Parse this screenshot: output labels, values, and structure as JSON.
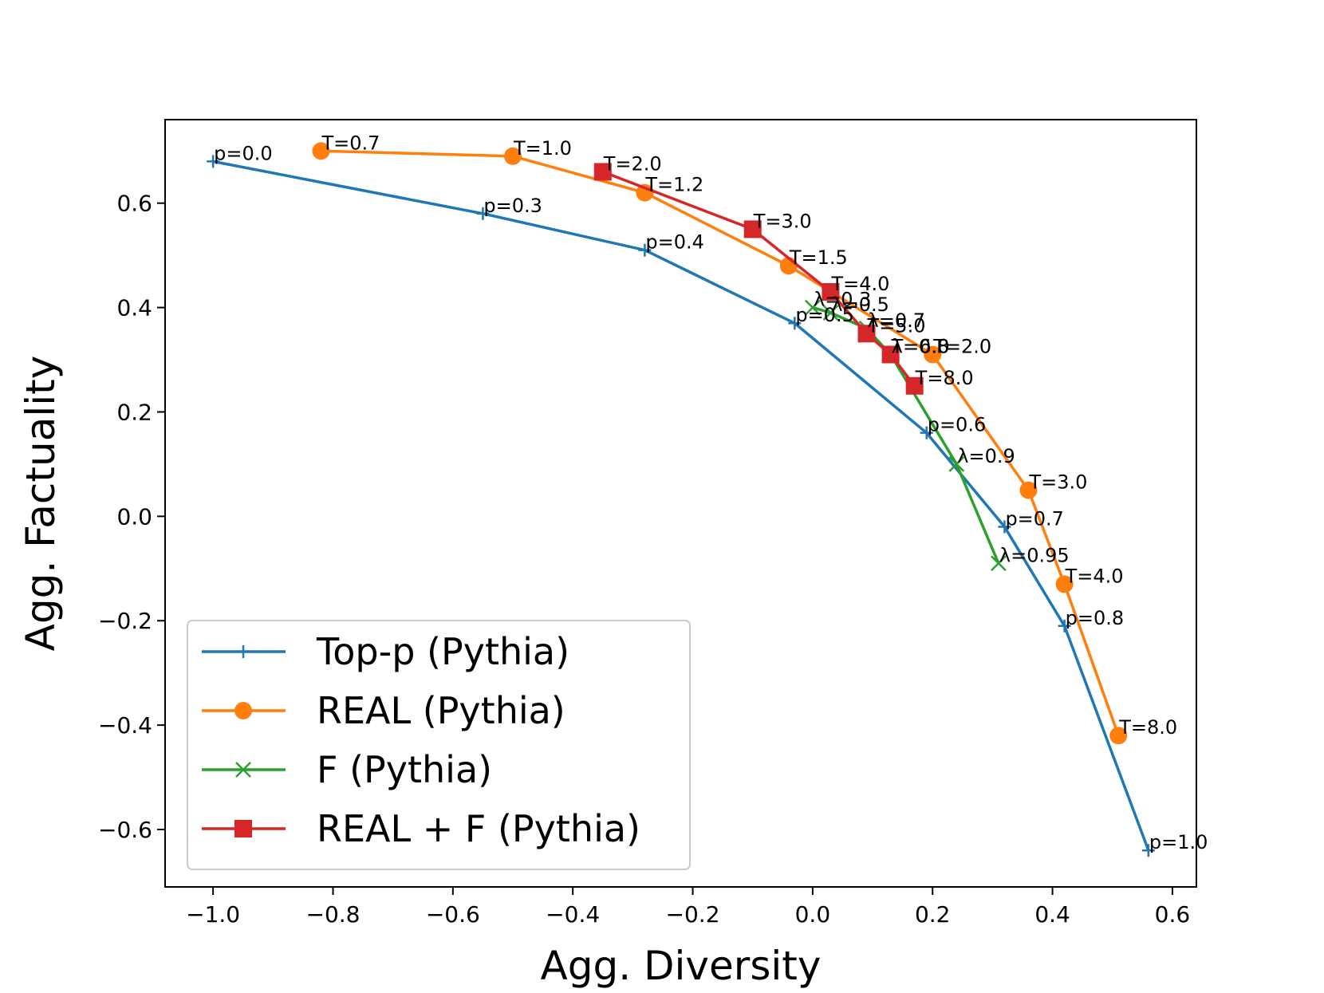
{
  "chart_data": {
    "type": "line",
    "title": "",
    "xlabel": "Agg. Diversity",
    "ylabel": "Agg. Factuality",
    "xlim": [
      -1.08,
      0.64
    ],
    "ylim": [
      -0.71,
      0.76
    ],
    "xticks": [
      -1.0,
      -0.8,
      -0.6,
      -0.4,
      -0.2,
      0.0,
      0.2,
      0.4,
      0.6
    ],
    "xtick_labels": [
      "−1.0",
      "−0.8",
      "−0.6",
      "−0.4",
      "−0.2",
      "0.0",
      "0.2",
      "0.4",
      "0.6"
    ],
    "yticks": [
      -0.6,
      -0.4,
      -0.2,
      0.0,
      0.2,
      0.4,
      0.6
    ],
    "ytick_labels": [
      "−0.6",
      "−0.4",
      "−0.2",
      "0.0",
      "0.2",
      "0.4",
      "0.6"
    ],
    "grid": false,
    "legend_position": "lower-left",
    "series": [
      {
        "name": "Top-p (Pythia)",
        "color": "#1f77b4",
        "marker": "plus",
        "points": [
          {
            "x": -1.0,
            "y": 0.68,
            "label": "p=0.0"
          },
          {
            "x": -0.55,
            "y": 0.58,
            "label": "p=0.3"
          },
          {
            "x": -0.28,
            "y": 0.51,
            "label": "p=0.4"
          },
          {
            "x": -0.03,
            "y": 0.37,
            "label": "p=0.5"
          },
          {
            "x": 0.19,
            "y": 0.16,
            "label": "p=0.6"
          },
          {
            "x": 0.32,
            "y": -0.02,
            "label": "p=0.7"
          },
          {
            "x": 0.42,
            "y": -0.21,
            "label": "p=0.8"
          },
          {
            "x": 0.56,
            "y": -0.64,
            "label": "p=1.0"
          }
        ]
      },
      {
        "name": "REAL (Pythia)",
        "color": "#ff7f0e",
        "marker": "circle",
        "points": [
          {
            "x": -0.82,
            "y": 0.7,
            "label": "T=0.7"
          },
          {
            "x": -0.5,
            "y": 0.69,
            "label": "T=1.0"
          },
          {
            "x": -0.28,
            "y": 0.62,
            "label": "T=1.2"
          },
          {
            "x": -0.04,
            "y": 0.48,
            "label": "T=1.5"
          },
          {
            "x": 0.2,
            "y": 0.31,
            "label": "T=2.0"
          },
          {
            "x": 0.36,
            "y": 0.05,
            "label": "T=3.0"
          },
          {
            "x": 0.42,
            "y": -0.13,
            "label": "T=4.0"
          },
          {
            "x": 0.51,
            "y": -0.42,
            "label": "T=8.0"
          }
        ]
      },
      {
        "name": "F (Pythia)",
        "color": "#2ca02c",
        "marker": "x",
        "points": [
          {
            "x": 0.0,
            "y": 0.4,
            "label": "λ=0.3"
          },
          {
            "x": 0.03,
            "y": 0.39,
            "label": "λ=0.5"
          },
          {
            "x": 0.09,
            "y": 0.36,
            "label": "λ=0.7"
          },
          {
            "x": 0.13,
            "y": 0.31,
            "label": "λ=0.8"
          },
          {
            "x": 0.24,
            "y": 0.1,
            "label": "λ=0.9"
          },
          {
            "x": 0.31,
            "y": -0.09,
            "label": "λ=0.95"
          }
        ]
      },
      {
        "name": "REAL + F (Pythia)",
        "color": "#d62728",
        "marker": "square",
        "points": [
          {
            "x": -0.35,
            "y": 0.66,
            "label": "T=2.0"
          },
          {
            "x": -0.1,
            "y": 0.55,
            "label": "T=3.0"
          },
          {
            "x": 0.03,
            "y": 0.43,
            "label": "T=4.0"
          },
          {
            "x": 0.09,
            "y": 0.35,
            "label": "T=5.0"
          },
          {
            "x": 0.13,
            "y": 0.31,
            "label": "T=6.0"
          },
          {
            "x": 0.17,
            "y": 0.25,
            "label": "T=8.0"
          }
        ]
      }
    ]
  }
}
